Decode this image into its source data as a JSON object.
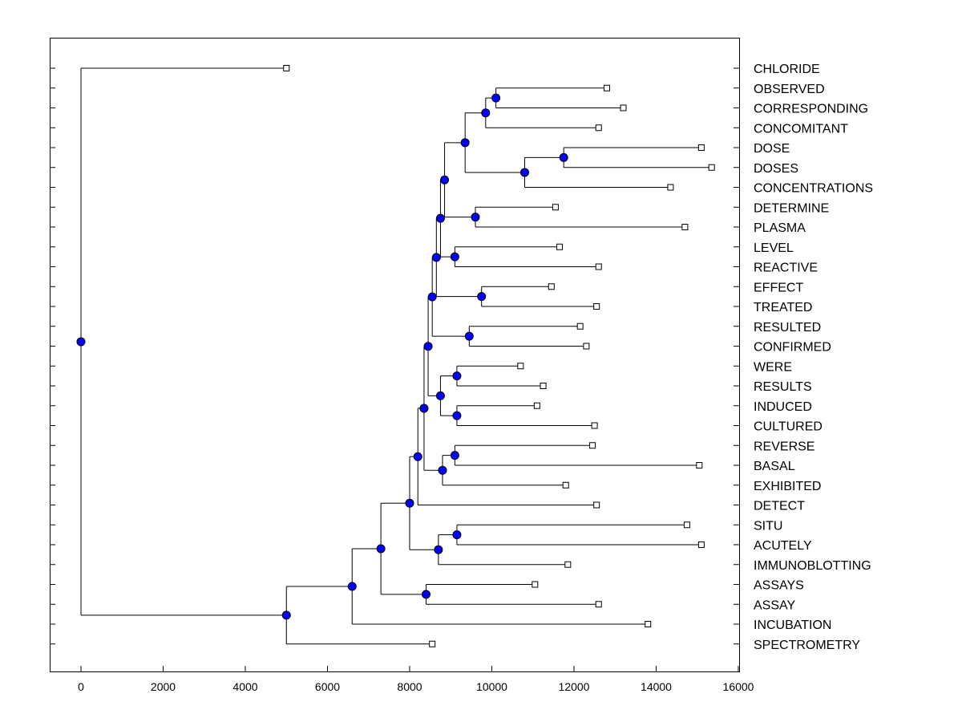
{
  "chart_data": {
    "type": "dendrogram",
    "title": "",
    "xlabel": "",
    "ylabel": "",
    "xlim": [
      -750,
      16100
    ],
    "x_ticks": [
      0,
      2000,
      4000,
      6000,
      8000,
      10000,
      12000,
      14000,
      16000
    ],
    "x_tick_labels": [
      "0",
      "2000",
      "4000",
      "6000",
      "8000",
      "10000",
      "12000",
      "14000",
      "16000"
    ],
    "colors": {
      "node": "#0000ff",
      "line": "#000000",
      "leaf_box": "#ffffff"
    },
    "leaves": [
      {
        "id": "L0",
        "label": "CHLORIDE",
        "x": 5000
      },
      {
        "id": "L1",
        "label": "OBSERVED",
        "x": 12800
      },
      {
        "id": "L2",
        "label": "CORRESPONDING",
        "x": 13200
      },
      {
        "id": "L3",
        "label": "CONCOMITANT",
        "x": 12600
      },
      {
        "id": "L4",
        "label": "DOSE",
        "x": 15100
      },
      {
        "id": "L5",
        "label": "DOSES",
        "x": 15350
      },
      {
        "id": "L6",
        "label": "CONCENTRATIONS",
        "x": 14350
      },
      {
        "id": "L7",
        "label": "DETERMINE",
        "x": 11550
      },
      {
        "id": "L8",
        "label": "PLASMA",
        "x": 14700
      },
      {
        "id": "L9",
        "label": "LEVEL",
        "x": 11650
      },
      {
        "id": "L10",
        "label": "REACTIVE",
        "x": 12600
      },
      {
        "id": "L11",
        "label": "EFFECT",
        "x": 11450
      },
      {
        "id": "L12",
        "label": "TREATED",
        "x": 12550
      },
      {
        "id": "L13",
        "label": "RESULTED",
        "x": 12150
      },
      {
        "id": "L14",
        "label": "CONFIRMED",
        "x": 12300
      },
      {
        "id": "L15",
        "label": "WERE",
        "x": 10700
      },
      {
        "id": "L16",
        "label": "RESULTS",
        "x": 11250
      },
      {
        "id": "L17",
        "label": "INDUCED",
        "x": 11100
      },
      {
        "id": "L18",
        "label": "CULTURED",
        "x": 12500
      },
      {
        "id": "L19",
        "label": "REVERSE",
        "x": 12450
      },
      {
        "id": "L20",
        "label": "BASAL",
        "x": 15050
      },
      {
        "id": "L21",
        "label": "EXHIBITED",
        "x": 11800
      },
      {
        "id": "L22",
        "label": "DETECT",
        "x": 12550
      },
      {
        "id": "L23",
        "label": "SITU",
        "x": 14750
      },
      {
        "id": "L24",
        "label": "ACUTELY",
        "x": 15100
      },
      {
        "id": "L25",
        "label": "IMMUNOBLOTTING",
        "x": 11850
      },
      {
        "id": "L26",
        "label": "ASSAYS",
        "x": 11050
      },
      {
        "id": "L27",
        "label": "ASSAY",
        "x": 12600
      },
      {
        "id": "L28",
        "label": "INCUBATION",
        "x": 13800
      },
      {
        "id": "L29",
        "label": "SPECTROMETRY",
        "x": 8550
      }
    ],
    "merges": [
      {
        "id": "N1",
        "x": 10100,
        "children": [
          "L1",
          "L2"
        ]
      },
      {
        "id": "N2",
        "x": 9850,
        "children": [
          "N1",
          "L3"
        ]
      },
      {
        "id": "N3",
        "x": 11750,
        "children": [
          "L4",
          "L5"
        ]
      },
      {
        "id": "N4",
        "x": 10800,
        "children": [
          "N3",
          "L6"
        ]
      },
      {
        "id": "N5",
        "x": 9350,
        "children": [
          "N2",
          "N4"
        ]
      },
      {
        "id": "N6",
        "x": 9600,
        "children": [
          "L7",
          "L8"
        ]
      },
      {
        "id": "N7",
        "x": 8850,
        "children": [
          "N5",
          "N6"
        ]
      },
      {
        "id": "N8",
        "x": 9100,
        "children": [
          "L9",
          "L10"
        ]
      },
      {
        "id": "N9",
        "x": 8750,
        "children": [
          "N7",
          "N8"
        ]
      },
      {
        "id": "N10",
        "x": 9750,
        "children": [
          "L11",
          "L12"
        ]
      },
      {
        "id": "N11",
        "x": 8650,
        "children": [
          "N9",
          "N10"
        ]
      },
      {
        "id": "N12",
        "x": 9450,
        "children": [
          "L13",
          "L14"
        ]
      },
      {
        "id": "N13",
        "x": 8550,
        "children": [
          "N11",
          "N12"
        ]
      },
      {
        "id": "N14",
        "x": 9150,
        "children": [
          "L15",
          "L16"
        ]
      },
      {
        "id": "N15",
        "x": 9150,
        "children": [
          "L17",
          "L18"
        ]
      },
      {
        "id": "N16",
        "x": 8750,
        "children": [
          "N14",
          "N15"
        ]
      },
      {
        "id": "N17",
        "x": 8450,
        "children": [
          "N13",
          "N16"
        ]
      },
      {
        "id": "N18",
        "x": 9100,
        "children": [
          "L19",
          "L20"
        ]
      },
      {
        "id": "N19",
        "x": 8800,
        "children": [
          "N18",
          "L21"
        ]
      },
      {
        "id": "N20",
        "x": 8350,
        "children": [
          "N17",
          "N19"
        ]
      },
      {
        "id": "N21",
        "x": 8200,
        "children": [
          "N20",
          "L22"
        ]
      },
      {
        "id": "N22",
        "x": 9150,
        "children": [
          "L23",
          "L24"
        ]
      },
      {
        "id": "N23",
        "x": 8700,
        "children": [
          "N22",
          "L25"
        ]
      },
      {
        "id": "N24",
        "x": 8000,
        "children": [
          "N21",
          "N23"
        ]
      },
      {
        "id": "N25",
        "x": 8400,
        "children": [
          "L26",
          "L27"
        ]
      },
      {
        "id": "N26",
        "x": 7300,
        "children": [
          "N24",
          "N25"
        ]
      },
      {
        "id": "N27",
        "x": 6600,
        "children": [
          "N26",
          "L28"
        ]
      },
      {
        "id": "N28",
        "x": 5000,
        "children": [
          "N27",
          "L29"
        ]
      },
      {
        "id": "N29",
        "x": 0,
        "children": [
          "L0",
          "N28"
        ]
      }
    ]
  }
}
